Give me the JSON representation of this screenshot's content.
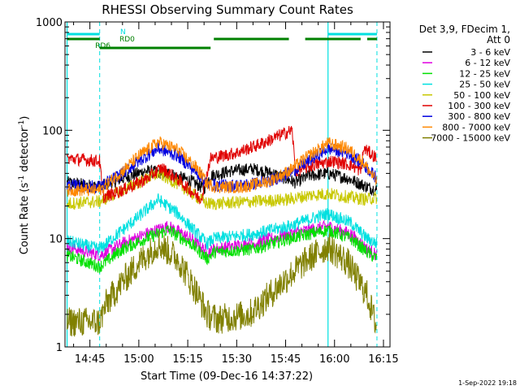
{
  "chart_data": {
    "type": "line",
    "title": "RHESSI Observing Summary Count Rates",
    "xlabel": "Start Time (09-Dec-16 14:37:22)",
    "ylabel": "Count Rate (s^-1 detector^-1)",
    "ylabel_parts": {
      "base": "Count Rate (s",
      "exp1": "-1",
      "mid": " detector",
      "exp2": "-1",
      "end": ")"
    },
    "y_scale": "log",
    "ylim": [
      1,
      1000
    ],
    "xlim": [
      "14:37:22",
      "16:17:00"
    ],
    "x_ticks": [
      "14:45",
      "15:00",
      "15:15",
      "15:30",
      "15:45",
      "16:00",
      "16:15"
    ],
    "y_ticks": [
      "1",
      "10",
      "100",
      "1000"
    ],
    "grid": false,
    "legend": {
      "placement": "top-right",
      "title_lines": [
        "Det 3,9, FDecim 1,",
        "Att 0"
      ]
    },
    "series": [
      {
        "name": "3 - 6 keV",
        "color": "#000000",
        "points": [
          [
            "14:38",
            33
          ],
          [
            "14:48",
            30
          ],
          [
            "14:55",
            36
          ],
          [
            "15:02",
            42
          ],
          [
            "15:09",
            40
          ],
          [
            "15:16",
            34
          ],
          [
            "15:20",
            29
          ],
          [
            "15:22",
            38
          ],
          [
            "15:28",
            42
          ],
          [
            "15:35",
            44
          ],
          [
            "15:41",
            40
          ],
          [
            "15:48",
            33
          ],
          [
            "15:52",
            38
          ],
          [
            "15:58",
            40
          ],
          [
            "16:04",
            36
          ],
          [
            "16:10",
            30
          ],
          [
            "16:13",
            28
          ]
        ]
      },
      {
        "name": "6 - 12 keV",
        "color": "#e000e0",
        "points": [
          [
            "14:38",
            8.5
          ],
          [
            "14:48",
            7
          ],
          [
            "14:55",
            9
          ],
          [
            "15:02",
            11
          ],
          [
            "15:09",
            13
          ],
          [
            "15:16",
            10
          ],
          [
            "15:21",
            7.5
          ],
          [
            "15:23",
            8
          ],
          [
            "15:35",
            9
          ],
          [
            "15:46",
            11
          ],
          [
            "15:52",
            12
          ],
          [
            "15:58",
            13
          ],
          [
            "16:05",
            11
          ],
          [
            "16:10",
            8
          ],
          [
            "16:13",
            7
          ]
        ]
      },
      {
        "name": "12 - 25 keV",
        "color": "#00e000",
        "points": [
          [
            "14:38",
            7
          ],
          [
            "14:48",
            5.5
          ],
          [
            "14:55",
            8
          ],
          [
            "15:02",
            10
          ],
          [
            "15:09",
            12
          ],
          [
            "15:16",
            9
          ],
          [
            "15:21",
            6.5
          ],
          [
            "15:23",
            7.5
          ],
          [
            "15:35",
            8
          ],
          [
            "15:46",
            10
          ],
          [
            "15:52",
            11
          ],
          [
            "15:58",
            12
          ],
          [
            "16:05",
            10
          ],
          [
            "16:10",
            7.5
          ],
          [
            "16:13",
            6.5
          ]
        ]
      },
      {
        "name": "25 - 50 keV",
        "color": "#00e0e0",
        "points": [
          [
            "14:38",
            9.5
          ],
          [
            "14:48",
            8
          ],
          [
            "14:55",
            12
          ],
          [
            "15:00",
            16
          ],
          [
            "15:06",
            23
          ],
          [
            "15:12",
            17
          ],
          [
            "15:18",
            11
          ],
          [
            "15:21",
            9
          ],
          [
            "15:23",
            10
          ],
          [
            "15:35",
            11
          ],
          [
            "15:46",
            13
          ],
          [
            "15:52",
            15
          ],
          [
            "15:58",
            17
          ],
          [
            "16:05",
            14
          ],
          [
            "16:10",
            10
          ],
          [
            "16:13",
            9
          ]
        ]
      },
      {
        "name": "50 - 100 keV",
        "color": "#c8c800",
        "points": [
          [
            "14:38",
            21
          ],
          [
            "14:48",
            22
          ],
          [
            "14:55",
            28
          ],
          [
            "15:00",
            33
          ],
          [
            "15:06",
            40
          ],
          [
            "15:12",
            32
          ],
          [
            "15:18",
            24
          ],
          [
            "15:21",
            21
          ],
          [
            "15:23",
            21
          ],
          [
            "15:35",
            22
          ],
          [
            "15:46",
            23
          ],
          [
            "15:52",
            25
          ],
          [
            "15:58",
            26
          ],
          [
            "16:05",
            24
          ],
          [
            "16:10",
            23
          ],
          [
            "16:13",
            24
          ]
        ]
      },
      {
        "name": "100 - 300 keV",
        "color": "#e00000",
        "points": [
          [
            "14:38",
            55
          ],
          [
            "14:48",
            52
          ],
          [
            "14:49",
            24
          ],
          [
            "14:55",
            28
          ],
          [
            "15:02",
            35
          ],
          [
            "15:07",
            45
          ],
          [
            "15:12",
            35
          ],
          [
            "15:19",
            23
          ],
          [
            "15:22",
            55
          ],
          [
            "15:30",
            62
          ],
          [
            "15:38",
            76
          ],
          [
            "15:44",
            92
          ],
          [
            "15:47",
            100
          ],
          [
            "15:48",
            42
          ],
          [
            "15:54",
            48
          ],
          [
            "15:59",
            52
          ],
          [
            "16:05",
            48
          ],
          [
            "16:08",
            42
          ],
          [
            "16:09",
            68
          ],
          [
            "16:13",
            55
          ]
        ]
      },
      {
        "name": "300 - 800 keV",
        "color": "#0000e0",
        "points": [
          [
            "14:38",
            31
          ],
          [
            "14:48",
            30
          ],
          [
            "14:55",
            40
          ],
          [
            "15:00",
            52
          ],
          [
            "15:06",
            68
          ],
          [
            "15:12",
            58
          ],
          [
            "15:18",
            40
          ],
          [
            "15:21",
            32
          ],
          [
            "15:24",
            31
          ],
          [
            "15:32",
            31
          ],
          [
            "15:40",
            34
          ],
          [
            "15:46",
            40
          ],
          [
            "15:52",
            52
          ],
          [
            "15:58",
            68
          ],
          [
            "16:04",
            62
          ],
          [
            "16:09",
            48
          ],
          [
            "16:13",
            36
          ]
        ]
      },
      {
        "name": "800 - 7000 keV",
        "color": "#ff8800",
        "points": [
          [
            "14:38",
            28
          ],
          [
            "14:48",
            28
          ],
          [
            "14:55",
            42
          ],
          [
            "15:00",
            58
          ],
          [
            "15:06",
            78
          ],
          [
            "15:12",
            66
          ],
          [
            "15:18",
            44
          ],
          [
            "15:21",
            32
          ],
          [
            "15:24",
            30
          ],
          [
            "15:32",
            30
          ],
          [
            "15:40",
            34
          ],
          [
            "15:46",
            42
          ],
          [
            "15:52",
            58
          ],
          [
            "15:58",
            76
          ],
          [
            "16:04",
            68
          ],
          [
            "16:09",
            50
          ],
          [
            "16:13",
            33
          ]
        ]
      },
      {
        "name": "7000 - 15000 keV",
        "color": "#808000",
        "points": [
          [
            "14:38",
            1.7
          ],
          [
            "14:48",
            1.7
          ],
          [
            "14:50",
            2.5
          ],
          [
            "14:55",
            4
          ],
          [
            "15:00",
            6
          ],
          [
            "15:06",
            9
          ],
          [
            "15:12",
            6.5
          ],
          [
            "15:17",
            3.5
          ],
          [
            "15:21",
            2
          ],
          [
            "15:24",
            1.8
          ],
          [
            "15:34",
            2
          ],
          [
            "15:40",
            3
          ],
          [
            "15:46",
            4.5
          ],
          [
            "15:52",
            6.5
          ],
          [
            "15:58",
            8.5
          ],
          [
            "16:04",
            6
          ],
          [
            "16:10",
            3
          ],
          [
            "16:13",
            1.5
          ]
        ]
      }
    ],
    "flags": [
      {
        "name": "N",
        "color": "#00e0e0",
        "segments": [
          [
            "14:38",
            "14:48"
          ],
          [
            "15:58",
            "16:13"
          ]
        ]
      },
      {
        "name": "RD0",
        "color": "#008000",
        "segments": [
          [
            "15:23",
            "15:46"
          ],
          [
            "15:51",
            "16:08"
          ],
          [
            "16:10",
            "16:13"
          ]
        ]
      },
      {
        "name": "RD6",
        "color": "#008000",
        "segments": [
          [
            "14:38",
            "14:48"
          ],
          [
            "14:48",
            "15:22"
          ]
        ]
      }
    ],
    "vlines_solid": [
      "14:38",
      "15:58"
    ],
    "vlines_dashed": [
      "14:48",
      "16:13"
    ]
  },
  "footer": {
    "timestamp": "1-Sep-2022 19:18"
  }
}
